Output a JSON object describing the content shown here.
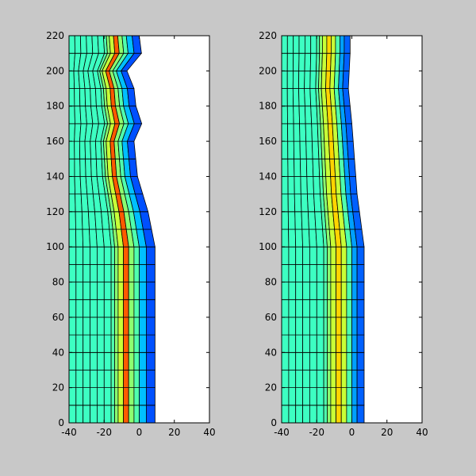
{
  "figure": {
    "background": "#c8c8c8"
  },
  "chart_data": [
    {
      "type": "heatmap",
      "subtype": "deformed-mesh-colored-patches",
      "title": "",
      "xlabel": "",
      "ylabel": "",
      "xlim": [
        -40,
        40
      ],
      "ylim": [
        0,
        220
      ],
      "xticks": [
        "-40",
        "-20",
        "0",
        "20",
        "40"
      ],
      "yticks": [
        "0",
        "20",
        "40",
        "60",
        "80",
        "100",
        "120",
        "140",
        "160",
        "180",
        "200",
        "220"
      ],
      "grid": false,
      "colormap": "jet",
      "mesh": {
        "rows": 22,
        "columns": [
          {
            "x0": -40,
            "x1": -36,
            "color": "#3dffc2"
          },
          {
            "x0": -36,
            "x1": -32,
            "color": "#3dffc2"
          },
          {
            "x0": -32,
            "x1": -28,
            "color": "#3dffc2"
          },
          {
            "x0": -28,
            "x1": -24,
            "color": "#3dffc2"
          },
          {
            "x0": -24,
            "x1": -20,
            "color": "#3dffc2"
          },
          {
            "x0": -20,
            "x1": -16,
            "color": "#3dffc2"
          },
          {
            "x0": -16,
            "x1": -14,
            "color": "#4fffae"
          },
          {
            "x0": -14,
            "x1": -12,
            "color": "#8cff70"
          },
          {
            "x0": -12,
            "x1": -9,
            "color": "#c8ff37"
          },
          {
            "x0": -9,
            "x1": -6,
            "color": "#ff5a00"
          },
          {
            "x0": -6,
            "x1": -3,
            "color": "#8cff70"
          },
          {
            "x0": -3,
            "x1": 0,
            "color": "#4fffae"
          },
          {
            "x0": 0,
            "x1": 4,
            "color": "#00bfff"
          },
          {
            "x0": 4,
            "x1": 9,
            "color": "#0050ff"
          }
        ],
        "top_profile": [
          {
            "y": 100,
            "right": 9
          },
          {
            "y": 120,
            "right": 5
          },
          {
            "y": 140,
            "right": -1
          },
          {
            "y": 160,
            "right": -3
          },
          {
            "y": 167,
            "right": 5
          },
          {
            "y": 172,
            "right": -1
          },
          {
            "y": 190,
            "right": -3
          },
          {
            "y": 200,
            "right": -7
          },
          {
            "y": 204,
            "right": 2
          },
          {
            "y": 220,
            "right": 0
          }
        ]
      }
    },
    {
      "type": "heatmap",
      "subtype": "deformed-mesh-colored-patches",
      "title": "",
      "xlabel": "",
      "ylabel": "",
      "xlim": [
        -40,
        40
      ],
      "ylim": [
        0,
        220
      ],
      "xticks": [
        "-40",
        "-20",
        "0",
        "20",
        "40"
      ],
      "yticks": [
        "0",
        "20",
        "40",
        "60",
        "80",
        "100",
        "120",
        "140",
        "160",
        "180",
        "200",
        "220"
      ],
      "grid": false,
      "colormap": "jet",
      "mesh": {
        "rows": 22,
        "columns": [
          {
            "x0": -40,
            "x1": -36,
            "color": "#3dffc2"
          },
          {
            "x0": -36,
            "x1": -32,
            "color": "#3dffc2"
          },
          {
            "x0": -32,
            "x1": -28,
            "color": "#3dffc2"
          },
          {
            "x0": -28,
            "x1": -24,
            "color": "#3dffc2"
          },
          {
            "x0": -24,
            "x1": -20,
            "color": "#3dffc2"
          },
          {
            "x0": -20,
            "x1": -16,
            "color": "#3dffc2"
          },
          {
            "x0": -16,
            "x1": -14,
            "color": "#4fffae"
          },
          {
            "x0": -14,
            "x1": -12,
            "color": "#8cff70"
          },
          {
            "x0": -12,
            "x1": -9,
            "color": "#c8ff37"
          },
          {
            "x0": -9,
            "x1": -6,
            "color": "#ffd400"
          },
          {
            "x0": -6,
            "x1": -3,
            "color": "#c8ff37"
          },
          {
            "x0": -3,
            "x1": 0,
            "color": "#4fffae"
          },
          {
            "x0": 0,
            "x1": 3,
            "color": "#00a0ff"
          },
          {
            "x0": 3,
            "x1": 7,
            "color": "#0060ff"
          }
        ],
        "top_profile": [
          {
            "y": 100,
            "right": 7
          },
          {
            "y": 130,
            "right": 3
          },
          {
            "y": 170,
            "right": 0
          },
          {
            "y": 190,
            "right": -2
          },
          {
            "y": 210,
            "right": -1
          },
          {
            "y": 220,
            "right": -1
          }
        ]
      }
    }
  ]
}
